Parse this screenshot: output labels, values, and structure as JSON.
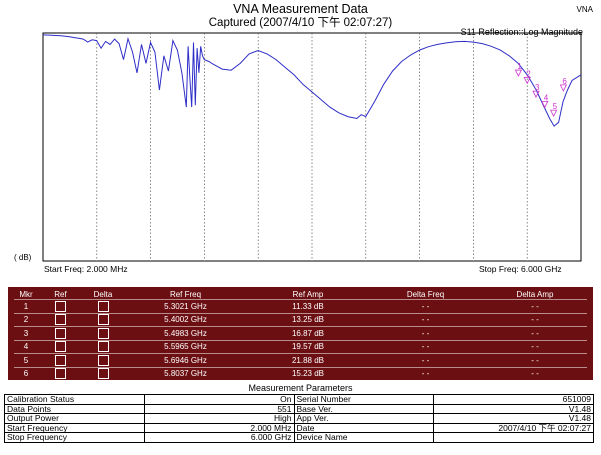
{
  "header": {
    "title": "VNA Measurement Data",
    "subtitle": "Captured  (2007/4/10 下午 02:07:27)",
    "brand": "VNA",
    "trace_label": "S11 Reflection::Log Magnitude"
  },
  "chart_data": {
    "type": "line",
    "title": "VNA Measurement Data",
    "subtitle": "Captured  (2007/4/10 下午 02:07:27)",
    "trace": "S11 Reflection::Log Magnitude",
    "ylabel": "( dB)",
    "x_start_label": "Start Freq: 2.000 MHz",
    "x_stop_label": "Stop Freq: 6.000 GHz",
    "xlim_ghz": [
      0.002,
      6.0
    ],
    "ylim_db": [
      -60,
      0
    ],
    "grid": "vertical dashed, 10 divisions",
    "line_color": "#2e2ec8",
    "marker_color": "#cc33cc",
    "series": [
      {
        "x": [
          0.002,
          0.1,
          0.2,
          0.3,
          0.35,
          0.4,
          0.45,
          0.5,
          0.55,
          0.6,
          0.65,
          0.7,
          0.75,
          0.8,
          0.85,
          0.9,
          0.95,
          1.0,
          1.05,
          1.1,
          1.15,
          1.2,
          1.25,
          1.3,
          1.35,
          1.4,
          1.45,
          1.5,
          1.55,
          1.6,
          1.62,
          1.64,
          1.66,
          1.68,
          1.7,
          1.72,
          1.74,
          1.76,
          1.78,
          1.8,
          1.85,
          1.9,
          2.0,
          2.1,
          2.2,
          2.3,
          2.4,
          2.5,
          2.6,
          2.7,
          2.8,
          2.9,
          3.0,
          3.1,
          3.2,
          3.3,
          3.4,
          3.5,
          3.55,
          3.6,
          3.7,
          3.8,
          3.9,
          4.0,
          4.1,
          4.2,
          4.3,
          4.4,
          4.5,
          4.6,
          4.7,
          4.8,
          4.9,
          5.0,
          5.1,
          5.2,
          5.3,
          5.4,
          5.45,
          5.5,
          5.55,
          5.6,
          5.65,
          5.7,
          5.75,
          5.8,
          5.85,
          5.9,
          6.0
        ],
        "y": [
          -0.5,
          -0.6,
          -0.7,
          -1.0,
          -1.2,
          -1.4,
          -1.6,
          -2.4,
          -1.8,
          -2.0,
          -4.0,
          -2.2,
          -3.0,
          -1.6,
          -2.8,
          -7.0,
          -1.5,
          -5.0,
          -10.5,
          -3.0,
          -8.0,
          -2.5,
          -5.0,
          -15.0,
          -6.0,
          -10.0,
          -2.0,
          -4.5,
          -10.5,
          -19.5,
          -3.5,
          -12.0,
          -19.5,
          -2.5,
          -19.0,
          -4.0,
          -10.5,
          -3.5,
          -6.0,
          -7.0,
          -7.5,
          -8.2,
          -9.5,
          -9.8,
          -8.0,
          -5.5,
          -4.6,
          -5.5,
          -7.0,
          -9.0,
          -11.0,
          -13.5,
          -15.5,
          -17.5,
          -19.5,
          -21.0,
          -22.0,
          -22.5,
          -21.5,
          -22.0,
          -18.0,
          -13.5,
          -10.0,
          -7.5,
          -5.8,
          -4.5,
          -3.6,
          -3.0,
          -2.6,
          -2.3,
          -2.2,
          -2.4,
          -2.8,
          -3.5,
          -4.5,
          -6.0,
          -8.0,
          -11.0,
          -13.0,
          -15.0,
          -17.5,
          -20.0,
          -22.5,
          -24.5,
          -23.5,
          -18.0,
          -15.0,
          -12.5,
          -11.0
        ]
      }
    ],
    "markers": [
      {
        "id": "1",
        "freq_ghz": 5.3021,
        "amp_db": -11.33
      },
      {
        "id": "2",
        "freq_ghz": 5.4002,
        "amp_db": -13.25
      },
      {
        "id": "3",
        "freq_ghz": 5.4983,
        "amp_db": -16.87
      },
      {
        "id": "4",
        "freq_ghz": 5.5965,
        "amp_db": -19.57
      },
      {
        "id": "5",
        "freq_ghz": 5.6946,
        "amp_db": -21.88
      },
      {
        "id": "6",
        "freq_ghz": 5.8037,
        "amp_db": -15.23
      }
    ]
  },
  "marker_table": {
    "headers": [
      "Mkr",
      "Ref",
      "Delta",
      "Ref Freq",
      "Ref Amp",
      "Delta Freq",
      "Delta Amp"
    ],
    "rows": [
      {
        "mkr": "1",
        "ref_freq": "5.3021 GHz",
        "ref_amp": "11.33 dB",
        "delta_freq": "- -",
        "delta_amp": "- -"
      },
      {
        "mkr": "2",
        "ref_freq": "5.4002 GHz",
        "ref_amp": "13.25 dB",
        "delta_freq": "- -",
        "delta_amp": "- -"
      },
      {
        "mkr": "3",
        "ref_freq": "5.4983 GHz",
        "ref_amp": "16.87 dB",
        "delta_freq": "- -",
        "delta_amp": "- -"
      },
      {
        "mkr": "4",
        "ref_freq": "5.5965 GHz",
        "ref_amp": "19.57 dB",
        "delta_freq": "- -",
        "delta_amp": "- -"
      },
      {
        "mkr": "5",
        "ref_freq": "5.6946 GHz",
        "ref_amp": "21.88 dB",
        "delta_freq": "- -",
        "delta_amp": "- -"
      },
      {
        "mkr": "6",
        "ref_freq": "5.8037 GHz",
        "ref_amp": "15.23 dB",
        "delta_freq": "- -",
        "delta_amp": "- -"
      }
    ]
  },
  "params": {
    "title": "Measurement Parameters",
    "rows": [
      {
        "l_label": "Calibration Status",
        "l_value": "On",
        "r_label": "Serial Number",
        "r_value": "651009"
      },
      {
        "l_label": "Data Points",
        "l_value": "551",
        "r_label": "Base Ver.",
        "r_value": "V1.48"
      },
      {
        "l_label": "Output Power",
        "l_value": "High",
        "r_label": "App Ver.",
        "r_value": "V1.48"
      },
      {
        "l_label": "Start Frequency",
        "l_value": "2.000 MHz",
        "r_label": "Date",
        "r_value": "2007/4/10 下午 02:07:27"
      },
      {
        "l_label": "Stop Frequency",
        "l_value": "6.000 GHz",
        "r_label": "Device Name",
        "r_value": ""
      }
    ]
  }
}
